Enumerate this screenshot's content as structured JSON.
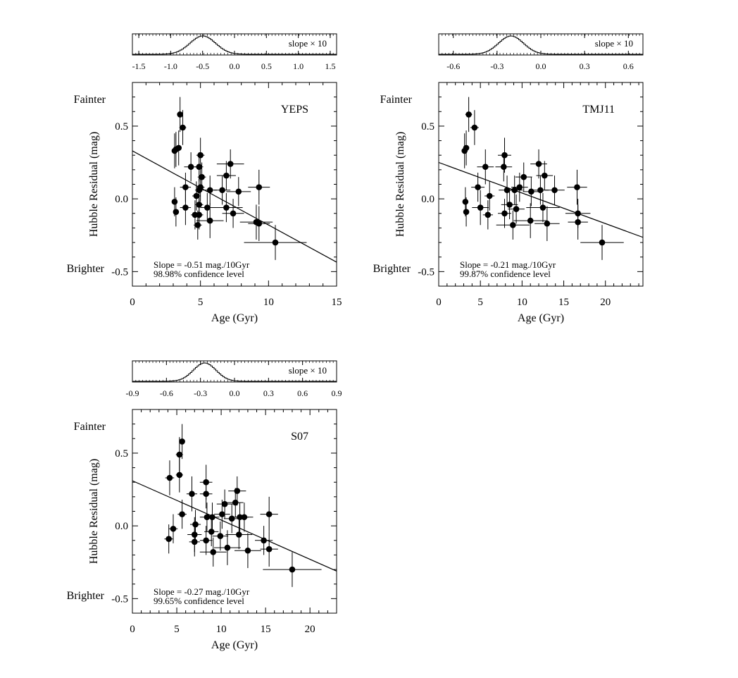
{
  "figure": {
    "shared": {
      "xlabel": "Age (Gyr)",
      "ylabel": "Hubble Residual (mag)",
      "fainter_label": "Fainter",
      "brighter_label": "Brighter",
      "inset_label": "slope × 10"
    }
  },
  "chart_data": [
    {
      "type": "scatter",
      "name": "YEPS",
      "xlim": [
        0,
        15
      ],
      "ylim": [
        -0.6,
        0.8
      ],
      "xticks": [
        0,
        5,
        10,
        15
      ],
      "yticks": [
        0.5,
        0.0,
        -0.5
      ],
      "ytick_labels": [
        "0.5",
        "0.0",
        "-0.5"
      ],
      "fit": {
        "slope_per_10gyr": -0.51,
        "intercept": 0.33
      },
      "slope_text": "Slope = -0.51 mag./10Gyr",
      "confidence_text": "98.98% confidence level",
      "inset": {
        "xlim": [
          -1.6,
          1.6
        ],
        "ticks": [
          -1.5,
          -1.0,
          -0.5,
          0.0,
          0.5,
          1.0,
          1.5
        ],
        "tick_labels": [
          "-1.5",
          "-1.0",
          "-0.5",
          "0.0",
          "0.5",
          "1.0",
          "1.5"
        ],
        "peak": -0.51,
        "sigma": 0.2
      },
      "points": [
        {
          "x": 3.5,
          "y": 0.58,
          "ex": 0.2,
          "ey": 0.12
        },
        {
          "x": 3.7,
          "y": 0.49,
          "ex": 0.25,
          "ey": 0.12
        },
        {
          "x": 3.4,
          "y": 0.35,
          "ex": 0.2,
          "ey": 0.12
        },
        {
          "x": 3.2,
          "y": 0.34,
          "ex": 0.2,
          "ey": 0.12
        },
        {
          "x": 3.1,
          "y": 0.33,
          "ex": 0.2,
          "ey": 0.12
        },
        {
          "x": 5.0,
          "y": 0.3,
          "ex": 0.3,
          "ey": 0.12
        },
        {
          "x": 7.2,
          "y": 0.24,
          "ex": 1.0,
          "ey": 0.1
        },
        {
          "x": 4.3,
          "y": 0.22,
          "ex": 0.5,
          "ey": 0.1
        },
        {
          "x": 4.9,
          "y": 0.22,
          "ex": 0.3,
          "ey": 0.1
        },
        {
          "x": 6.9,
          "y": 0.16,
          "ex": 0.7,
          "ey": 0.1
        },
        {
          "x": 5.1,
          "y": 0.15,
          "ex": 0.3,
          "ey": 0.1
        },
        {
          "x": 3.9,
          "y": 0.08,
          "ex": 0.4,
          "ey": 0.1
        },
        {
          "x": 9.3,
          "y": 0.08,
          "ex": 0.8,
          "ey": 0.12
        },
        {
          "x": 5.0,
          "y": 0.08,
          "ex": 0.3,
          "ey": 0.1
        },
        {
          "x": 4.9,
          "y": 0.06,
          "ex": 0.3,
          "ey": 0.1
        },
        {
          "x": 5.7,
          "y": 0.06,
          "ex": 0.5,
          "ey": 0.1
        },
        {
          "x": 6.6,
          "y": 0.06,
          "ex": 0.6,
          "ey": 0.1
        },
        {
          "x": 7.8,
          "y": 0.05,
          "ex": 0.9,
          "ey": 0.1
        },
        {
          "x": 4.7,
          "y": 0.02,
          "ex": 0.3,
          "ey": 0.1
        },
        {
          "x": 3.1,
          "y": -0.02,
          "ex": 0.2,
          "ey": 0.1
        },
        {
          "x": 4.9,
          "y": -0.04,
          "ex": 0.3,
          "ey": 0.1
        },
        {
          "x": 3.9,
          "y": -0.06,
          "ex": 0.4,
          "ey": 0.12
        },
        {
          "x": 5.5,
          "y": -0.06,
          "ex": 0.5,
          "ey": 0.1
        },
        {
          "x": 6.9,
          "y": -0.06,
          "ex": 1.2,
          "ey": 0.1
        },
        {
          "x": 3.2,
          "y": -0.09,
          "ex": 0.2,
          "ey": 0.1
        },
        {
          "x": 7.4,
          "y": -0.1,
          "ex": 0.8,
          "ey": 0.1
        },
        {
          "x": 4.9,
          "y": -0.11,
          "ex": 0.3,
          "ey": 0.1
        },
        {
          "x": 4.6,
          "y": -0.11,
          "ex": 0.3,
          "ey": 0.1
        },
        {
          "x": 5.7,
          "y": -0.15,
          "ex": 1.0,
          "ey": 0.12
        },
        {
          "x": 9.1,
          "y": -0.16,
          "ex": 1.2,
          "ey": 0.12
        },
        {
          "x": 9.3,
          "y": -0.17,
          "ex": 0.8,
          "ey": 0.12
        },
        {
          "x": 4.8,
          "y": -0.18,
          "ex": 0.3,
          "ey": 0.1
        },
        {
          "x": 10.5,
          "y": -0.3,
          "ex": 2.3,
          "ey": 0.12
        }
      ]
    },
    {
      "type": "scatter",
      "name": "TMJ11",
      "xlim": [
        0,
        24.5
      ],
      "ylim": [
        -0.6,
        0.8
      ],
      "xticks": [
        0,
        5,
        10,
        15,
        20
      ],
      "yticks": [
        0.5,
        0.0,
        -0.5
      ],
      "ytick_labels": [
        "0.5",
        "0.0",
        "-0.5"
      ],
      "fit": {
        "slope_per_10gyr": -0.21,
        "intercept": 0.25
      },
      "slope_text": "Slope = -0.21 mag./10Gyr",
      "confidence_text": "99.87% confidence level",
      "inset": {
        "xlim": [
          -0.7,
          0.7
        ],
        "ticks": [
          -0.6,
          -0.3,
          0.0,
          0.3,
          0.6
        ],
        "tick_labels": [
          "-0.6",
          "-0.3",
          "0.0",
          "0.3",
          "0.6"
        ],
        "peak": -0.21,
        "sigma": 0.085
      },
      "points": [
        {
          "x": 3.6,
          "y": 0.58,
          "ex": 0.4,
          "ey": 0.12
        },
        {
          "x": 4.3,
          "y": 0.49,
          "ex": 0.5,
          "ey": 0.12
        },
        {
          "x": 3.3,
          "y": 0.35,
          "ex": 0.3,
          "ey": 0.12
        },
        {
          "x": 3.1,
          "y": 0.33,
          "ex": 0.3,
          "ey": 0.12
        },
        {
          "x": 7.9,
          "y": 0.3,
          "ex": 0.8,
          "ey": 0.12
        },
        {
          "x": 12.0,
          "y": 0.24,
          "ex": 1.0,
          "ey": 0.1
        },
        {
          "x": 7.8,
          "y": 0.22,
          "ex": 1.0,
          "ey": 0.1
        },
        {
          "x": 5.6,
          "y": 0.22,
          "ex": 1.0,
          "ey": 0.12
        },
        {
          "x": 12.7,
          "y": 0.16,
          "ex": 1.0,
          "ey": 0.1
        },
        {
          "x": 10.2,
          "y": 0.15,
          "ex": 1.0,
          "ey": 0.1
        },
        {
          "x": 4.7,
          "y": 0.08,
          "ex": 0.8,
          "ey": 0.1
        },
        {
          "x": 16.6,
          "y": 0.08,
          "ex": 1.2,
          "ey": 0.12
        },
        {
          "x": 9.7,
          "y": 0.08,
          "ex": 1.0,
          "ey": 0.1
        },
        {
          "x": 8.2,
          "y": 0.06,
          "ex": 1.0,
          "ey": 0.1
        },
        {
          "x": 9.1,
          "y": 0.06,
          "ex": 1.0,
          "ey": 0.1
        },
        {
          "x": 12.2,
          "y": 0.06,
          "ex": 1.0,
          "ey": 0.1
        },
        {
          "x": 13.9,
          "y": 0.06,
          "ex": 1.2,
          "ey": 0.1
        },
        {
          "x": 11.1,
          "y": 0.05,
          "ex": 1.0,
          "ey": 0.1
        },
        {
          "x": 6.1,
          "y": 0.02,
          "ex": 0.6,
          "ey": 0.1
        },
        {
          "x": 3.2,
          "y": -0.02,
          "ex": 0.3,
          "ey": 0.1
        },
        {
          "x": 8.5,
          "y": -0.04,
          "ex": 1.0,
          "ey": 0.1
        },
        {
          "x": 5.0,
          "y": -0.06,
          "ex": 1.0,
          "ey": 0.12
        },
        {
          "x": 9.3,
          "y": -0.07,
          "ex": 1.0,
          "ey": 0.1
        },
        {
          "x": 12.5,
          "y": -0.06,
          "ex": 2.0,
          "ey": 0.1
        },
        {
          "x": 3.3,
          "y": -0.09,
          "ex": 0.3,
          "ey": 0.1
        },
        {
          "x": 16.7,
          "y": -0.1,
          "ex": 1.5,
          "ey": 0.1
        },
        {
          "x": 7.9,
          "y": -0.1,
          "ex": 0.8,
          "ey": 0.1
        },
        {
          "x": 5.9,
          "y": -0.11,
          "ex": 0.6,
          "ey": 0.1
        },
        {
          "x": 11.0,
          "y": -0.15,
          "ex": 2.0,
          "ey": 0.12
        },
        {
          "x": 16.7,
          "y": -0.16,
          "ex": 1.2,
          "ey": 0.12
        },
        {
          "x": 13.0,
          "y": -0.17,
          "ex": 1.5,
          "ey": 0.12
        },
        {
          "x": 8.9,
          "y": -0.18,
          "ex": 2.0,
          "ey": 0.1
        },
        {
          "x": 19.6,
          "y": -0.3,
          "ex": 2.6,
          "ey": 0.12
        }
      ]
    },
    {
      "type": "scatter",
      "name": "S07",
      "xlim": [
        0,
        23
      ],
      "ylim": [
        -0.6,
        0.8
      ],
      "xticks": [
        0,
        5,
        10,
        15,
        20
      ],
      "yticks": [
        0.5,
        0.0,
        -0.5
      ],
      "ytick_labels": [
        "0.5",
        "0.0",
        "-0.5"
      ],
      "fit": {
        "slope_per_10gyr": -0.27,
        "intercept": 0.31
      },
      "slope_text": "Slope = -0.27 mag./10Gyr",
      "confidence_text": "99.65% confidence level",
      "inset": {
        "xlim": [
          -0.9,
          0.9
        ],
        "ticks": [
          -0.9,
          -0.6,
          -0.3,
          0.0,
          0.3,
          0.6,
          0.9
        ],
        "tick_labels": [
          "-0.9",
          "-0.6",
          "-0.3",
          "0.0",
          "0.3",
          "0.6",
          "0.9"
        ],
        "peak": -0.27,
        "sigma": 0.1
      },
      "points": [
        {
          "x": 5.6,
          "y": 0.58,
          "ex": 0.3,
          "ey": 0.12
        },
        {
          "x": 5.3,
          "y": 0.49,
          "ex": 0.4,
          "ey": 0.12
        },
        {
          "x": 5.3,
          "y": 0.35,
          "ex": 0.4,
          "ey": 0.12
        },
        {
          "x": 4.2,
          "y": 0.33,
          "ex": 0.5,
          "ey": 0.12
        },
        {
          "x": 8.3,
          "y": 0.3,
          "ex": 0.7,
          "ey": 0.12
        },
        {
          "x": 11.8,
          "y": 0.24,
          "ex": 1.0,
          "ey": 0.1
        },
        {
          "x": 6.7,
          "y": 0.22,
          "ex": 0.6,
          "ey": 0.12
        },
        {
          "x": 8.3,
          "y": 0.22,
          "ex": 0.7,
          "ey": 0.1
        },
        {
          "x": 11.6,
          "y": 0.16,
          "ex": 0.9,
          "ey": 0.1
        },
        {
          "x": 10.4,
          "y": 0.15,
          "ex": 0.9,
          "ey": 0.1
        },
        {
          "x": 5.6,
          "y": 0.08,
          "ex": 0.5,
          "ey": 0.1
        },
        {
          "x": 15.4,
          "y": 0.08,
          "ex": 1.0,
          "ey": 0.12
        },
        {
          "x": 10.1,
          "y": 0.08,
          "ex": 0.9,
          "ey": 0.1
        },
        {
          "x": 8.4,
          "y": 0.06,
          "ex": 0.8,
          "ey": 0.1
        },
        {
          "x": 9.0,
          "y": 0.06,
          "ex": 0.8,
          "ey": 0.1
        },
        {
          "x": 12.1,
          "y": 0.06,
          "ex": 1.0,
          "ey": 0.1
        },
        {
          "x": 12.6,
          "y": 0.06,
          "ex": 1.0,
          "ey": 0.1
        },
        {
          "x": 11.2,
          "y": 0.05,
          "ex": 0.9,
          "ey": 0.1
        },
        {
          "x": 7.1,
          "y": 0.01,
          "ex": 0.6,
          "ey": 0.1
        },
        {
          "x": 4.6,
          "y": -0.02,
          "ex": 0.5,
          "ey": 0.1
        },
        {
          "x": 8.9,
          "y": -0.04,
          "ex": 0.8,
          "ey": 0.1
        },
        {
          "x": 7.0,
          "y": -0.06,
          "ex": 0.8,
          "ey": 0.12
        },
        {
          "x": 9.9,
          "y": -0.07,
          "ex": 0.9,
          "ey": 0.1
        },
        {
          "x": 12.0,
          "y": -0.06,
          "ex": 1.5,
          "ey": 0.1
        },
        {
          "x": 4.1,
          "y": -0.09,
          "ex": 0.5,
          "ey": 0.1
        },
        {
          "x": 14.8,
          "y": -0.1,
          "ex": 1.0,
          "ey": 0.1
        },
        {
          "x": 8.3,
          "y": -0.1,
          "ex": 0.7,
          "ey": 0.1
        },
        {
          "x": 7.0,
          "y": -0.11,
          "ex": 0.6,
          "ey": 0.1
        },
        {
          "x": 10.7,
          "y": -0.15,
          "ex": 1.5,
          "ey": 0.12
        },
        {
          "x": 15.4,
          "y": -0.16,
          "ex": 1.0,
          "ey": 0.12
        },
        {
          "x": 13.0,
          "y": -0.17,
          "ex": 1.5,
          "ey": 0.12
        },
        {
          "x": 9.1,
          "y": -0.18,
          "ex": 1.5,
          "ey": 0.1
        },
        {
          "x": 18.0,
          "y": -0.3,
          "ex": 3.3,
          "ey": 0.12
        }
      ]
    }
  ]
}
